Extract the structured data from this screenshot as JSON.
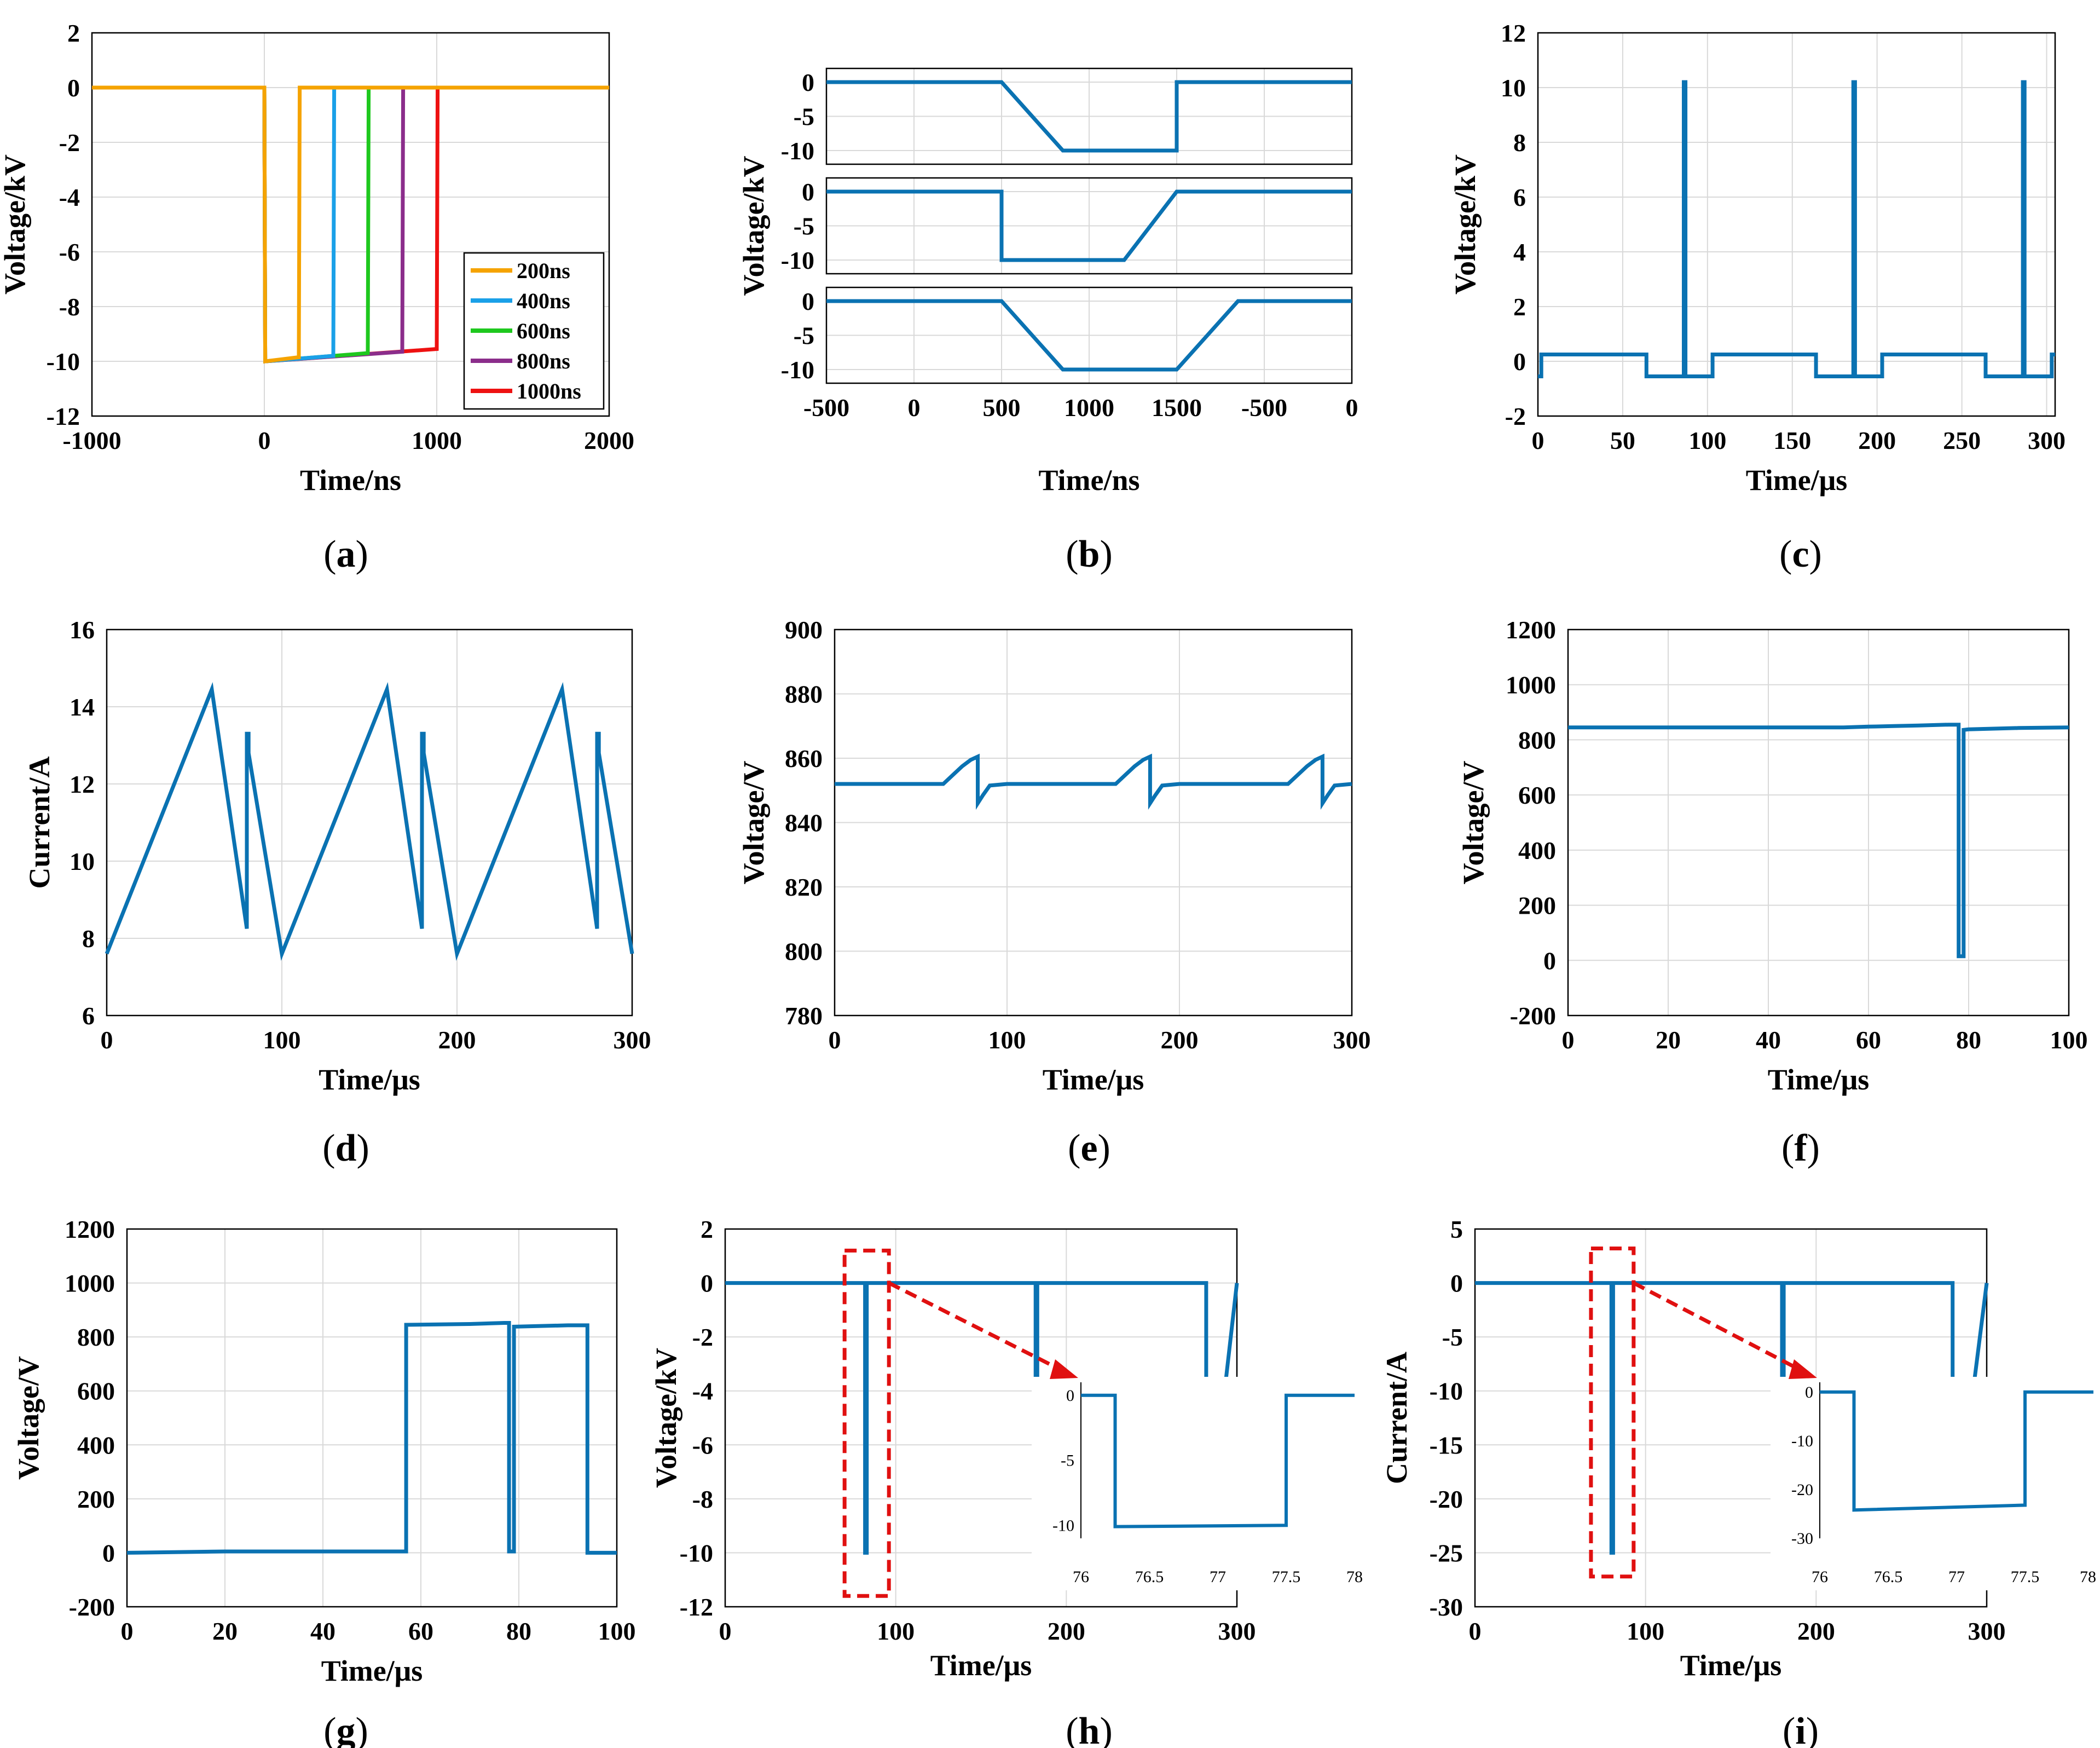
{
  "colors": {
    "series_default": "#0a72b2",
    "grid": "#d9d9d9",
    "axis": "#000000",
    "highlight_box": "#e01010",
    "legend": {
      "200ns": "#f5a300",
      "400ns": "#1aa0e8",
      "600ns": "#1ec81e",
      "800ns": "#8b2d8b",
      "1000ns": "#ee1111"
    }
  },
  "panels": [
    {
      "id": "a",
      "label": "(a)",
      "letter": "a"
    },
    {
      "id": "b",
      "label": "(b)",
      "letter": "b"
    },
    {
      "id": "c",
      "label": "(c)",
      "letter": "c"
    },
    {
      "id": "d",
      "label": "(d)",
      "letter": "d"
    },
    {
      "id": "e",
      "label": "(e)",
      "letter": "e"
    },
    {
      "id": "f",
      "label": "(f)",
      "letter": "f"
    },
    {
      "id": "g",
      "label": "(g)",
      "letter": "g"
    },
    {
      "id": "h",
      "label": "(h)",
      "letter": "h"
    },
    {
      "id": "i",
      "label": "(i)",
      "letter": "i"
    }
  ],
  "chart_data": [
    {
      "panel": "a",
      "type": "line",
      "xlabel": "Time/ns",
      "ylabel": "Voltage/kV",
      "xlim": [
        -1000,
        2000
      ],
      "ylim": [
        -12,
        2
      ],
      "xticks": [
        -1000,
        0,
        1000,
        2000
      ],
      "yticks": [
        -12,
        -10,
        -8,
        -6,
        -4,
        -2,
        0,
        2
      ],
      "legend_position": "bottom-right",
      "grid": true,
      "series": [
        {
          "name": "200ns",
          "x": [
            -1000,
            0,
            5,
            200,
            205,
            2000
          ],
          "y": [
            0,
            0,
            -10,
            -9.85,
            0,
            0
          ]
        },
        {
          "name": "400ns",
          "x": [
            -1000,
            0,
            5,
            400,
            405,
            2000
          ],
          "y": [
            0,
            0,
            -10,
            -9.8,
            0,
            0
          ]
        },
        {
          "name": "600ns",
          "x": [
            -1000,
            0,
            5,
            600,
            605,
            2000
          ],
          "y": [
            0,
            0,
            -10,
            -9.7,
            0,
            0
          ]
        },
        {
          "name": "800ns",
          "x": [
            -1000,
            0,
            5,
            800,
            805,
            2000
          ],
          "y": [
            0,
            0,
            -10,
            -9.65,
            0,
            0
          ]
        },
        {
          "name": "1000ns",
          "x": [
            -1000,
            0,
            5,
            1000,
            1005,
            2000
          ],
          "y": [
            0,
            0,
            -10,
            -9.55,
            0,
            0
          ]
        }
      ]
    },
    {
      "panel": "b",
      "type": "line",
      "xlabel": "Time/ns",
      "ylabel": "Voltage/kV",
      "xticks": [
        "-500",
        "0",
        "500",
        "1000",
        "1500",
        "-500",
        "0"
      ],
      "subplots": [
        {
          "ylim": [
            -12,
            2
          ],
          "yticks": [
            0,
            -5,
            -10
          ],
          "x": [
            -500,
            0,
            500,
            850,
            1500,
            1500,
            2500
          ],
          "y": [
            0,
            0,
            0,
            -10,
            -10,
            0,
            0
          ]
        },
        {
          "ylim": [
            -12,
            2
          ],
          "yticks": [
            0,
            -5,
            -10
          ],
          "x": [
            -500,
            0,
            500,
            500,
            1200,
            1500,
            2500
          ],
          "y": [
            0,
            0,
            0,
            -10,
            -10,
            0,
            0
          ]
        },
        {
          "ylim": [
            -12,
            2
          ],
          "yticks": [
            0,
            -5,
            -10
          ],
          "x": [
            -500,
            0,
            500,
            850,
            1500,
            1850,
            2500
          ],
          "y": [
            0,
            0,
            0,
            -10,
            -10,
            0,
            0
          ]
        }
      ]
    },
    {
      "panel": "c",
      "type": "line",
      "xlabel": "Time/μs",
      "ylabel": "Voltage/kV",
      "xlim": [
        0,
        305
      ],
      "ylim": [
        -2,
        12
      ],
      "xticks": [
        0,
        50,
        100,
        150,
        200,
        250,
        300
      ],
      "yticks": [
        -2,
        0,
        2,
        4,
        6,
        8,
        10,
        12
      ],
      "x": [
        0,
        2,
        2,
        64,
        64,
        86,
        86,
        87,
        87,
        103,
        103,
        164,
        164,
        186,
        186,
        187,
        187,
        203,
        203,
        264,
        264,
        286,
        286,
        287,
        287,
        303,
        303,
        305
      ],
      "y": [
        -0.55,
        -0.55,
        0.25,
        0.25,
        -0.55,
        -0.55,
        10.2,
        10.2,
        -0.55,
        -0.55,
        0.25,
        0.25,
        -0.55,
        -0.55,
        10.2,
        10.2,
        -0.55,
        -0.55,
        0.25,
        0.25,
        -0.55,
        -0.55,
        10.2,
        10.2,
        -0.55,
        -0.55,
        0.25,
        0.25
      ]
    },
    {
      "panel": "d",
      "type": "line",
      "xlabel": "Time/μs",
      "ylabel": "Current/A",
      "xlim": [
        0,
        300
      ],
      "ylim": [
        6,
        16
      ],
      "xticks": [
        0,
        100,
        200,
        300
      ],
      "yticks": [
        6,
        8,
        10,
        12,
        14,
        16
      ],
      "x": [
        0,
        60,
        80,
        80,
        81,
        81,
        100,
        160,
        180,
        180,
        181,
        181,
        200,
        260,
        280,
        280,
        281,
        281,
        300
      ],
      "y": [
        7.6,
        14.45,
        8.25,
        13.3,
        13.3,
        12.8,
        7.6,
        14.45,
        8.25,
        13.3,
        13.3,
        12.8,
        7.6,
        14.45,
        8.25,
        13.3,
        13.3,
        12.8,
        7.6
      ]
    },
    {
      "panel": "e",
      "type": "line",
      "xlabel": "Time/μs",
      "ylabel": "Voltage/V",
      "xlim": [
        0,
        300
      ],
      "ylim": [
        780,
        900
      ],
      "xticks": [
        0,
        100,
        200,
        300
      ],
      "yticks": [
        780,
        800,
        820,
        840,
        860,
        880,
        900
      ],
      "x": [
        0,
        63,
        68,
        74,
        79,
        83,
        83,
        86,
        90,
        100,
        163,
        168,
        174,
        179,
        183,
        183,
        186,
        190,
        200,
        263,
        268,
        274,
        279,
        283,
        283,
        286,
        290,
        300
      ],
      "y": [
        852,
        852,
        854.5,
        857.5,
        859.5,
        860.5,
        846,
        848.5,
        851.5,
        852,
        852,
        854.5,
        857.5,
        859.5,
        860.5,
        846,
        848.5,
        851.5,
        852,
        852,
        854.5,
        857.5,
        859.5,
        860.5,
        846,
        848.5,
        851.5,
        852
      ]
    },
    {
      "panel": "f",
      "type": "line",
      "xlabel": "Time/μs",
      "ylabel": "Voltage/V",
      "xlim": [
        0,
        100
      ],
      "ylim": [
        -200,
        1200
      ],
      "xticks": [
        0,
        20,
        40,
        60,
        80,
        100
      ],
      "yticks": [
        -200,
        0,
        200,
        400,
        600,
        800,
        1000,
        1200
      ],
      "x": [
        0,
        55,
        60,
        65,
        70,
        76,
        78,
        78,
        79,
        79,
        80,
        90,
        100
      ],
      "y": [
        845,
        845,
        848,
        850,
        852,
        855,
        855,
        15,
        15,
        836,
        838,
        843,
        845
      ]
    },
    {
      "panel": "g",
      "type": "line",
      "xlabel": "Time/μs",
      "ylabel": "Voltage/V",
      "xlim": [
        0,
        100
      ],
      "ylim": [
        -200,
        1200
      ],
      "xticks": [
        0,
        20,
        40,
        60,
        80,
        100
      ],
      "yticks": [
        -200,
        0,
        200,
        400,
        600,
        800,
        1000,
        1200
      ],
      "x": [
        0,
        20,
        57,
        57,
        70,
        77,
        78,
        78,
        79,
        79,
        90,
        94,
        94,
        100
      ],
      "y": [
        0,
        5,
        5,
        845,
        848,
        852,
        852,
        5,
        5,
        838,
        843,
        843,
        0,
        0
      ]
    },
    {
      "panel": "h",
      "type": "line",
      "xlabel": "Time/μs",
      "ylabel": "Voltage/kV",
      "xlim": [
        0,
        300
      ],
      "ylim": [
        -12,
        2
      ],
      "xticks": [
        0,
        100,
        200,
        300
      ],
      "yticks": [
        -12,
        -10,
        -8,
        -6,
        -4,
        -2,
        0,
        2
      ],
      "x": [
        0,
        82,
        82,
        83,
        83,
        182,
        182,
        183,
        183,
        282,
        282,
        300
      ],
      "y": [
        0,
        0,
        -10,
        -10,
        0,
        0,
        -10,
        -10,
        0,
        0,
        -10,
        0
      ],
      "inset": {
        "xlim": [
          76,
          78
        ],
        "ylim": [
          -11,
          1
        ],
        "xticks": [
          "76",
          "76.5",
          "77",
          "77.5",
          "78"
        ],
        "yticks": [
          0,
          -5,
          -10
        ],
        "x": [
          76,
          76.25,
          76.25,
          77.5,
          77.5,
          78
        ],
        "y": [
          0,
          0,
          -10.1,
          -10.0,
          0,
          0
        ]
      }
    },
    {
      "panel": "i",
      "type": "line",
      "xlabel": "Time/μs",
      "ylabel": "Current/A",
      "xlim": [
        0,
        300
      ],
      "ylim": [
        -30,
        5
      ],
      "xticks": [
        0,
        100,
        200,
        300
      ],
      "yticks": [
        -30,
        -25,
        -20,
        -15,
        -10,
        -5,
        0,
        5
      ],
      "x": [
        0,
        80,
        80,
        81,
        81,
        180,
        180,
        181,
        181,
        280,
        280,
        300
      ],
      "y": [
        0,
        0,
        -25,
        -25,
        0,
        0,
        -25,
        -25,
        0,
        0,
        -25,
        0
      ],
      "inset": {
        "xlim": [
          76,
          78
        ],
        "ylim": [
          -30,
          2
        ],
        "xticks": [
          "76",
          "76.5",
          "77",
          "77.5",
          "78"
        ],
        "yticks": [
          0,
          -10,
          -20,
          -30
        ],
        "x": [
          76,
          76.25,
          76.25,
          77.5,
          77.5,
          78
        ],
        "y": [
          0,
          0,
          -24.2,
          -23.2,
          0,
          0
        ]
      }
    }
  ]
}
